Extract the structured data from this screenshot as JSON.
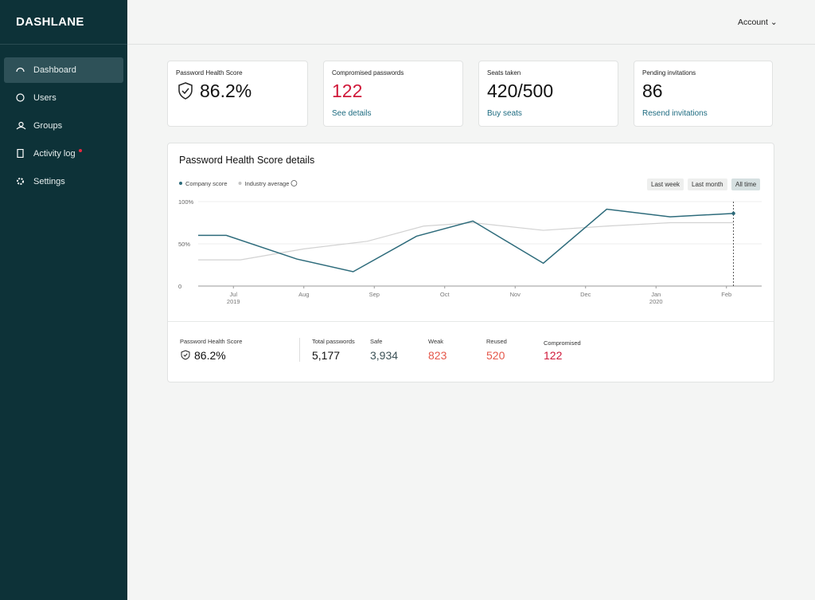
{
  "sidebar": {
    "logo": "DASHLANE",
    "nav": [
      "Dashboard",
      "Users",
      "Groups",
      "Activity log",
      "Settings"
    ]
  },
  "header": {
    "account": "Account"
  },
  "cards": [
    {
      "title": "Password Health Score",
      "value": "86.2%"
    },
    {
      "title": "Compromised passwords",
      "value": "122",
      "link": "See details"
    },
    {
      "title": "Seats taken",
      "value": "420/500",
      "link": "Buy seats"
    },
    {
      "title": "Pending invitations",
      "value": "86",
      "link": "Resend invitations"
    }
  ],
  "panel": {
    "title": "Password Health Score details",
    "ranges": [
      "Last week",
      "Last month",
      "All time"
    ]
  },
  "chart_data": {
    "type": "line",
    "series": [
      {
        "name": "Company score",
        "color": "#2d6b7b",
        "x": [
          -0.5,
          -0.1,
          0.9,
          1.7,
          2.6,
          3.4,
          4.4,
          5.3,
          6.2,
          7.1
        ],
        "values": [
          60,
          60,
          32,
          17,
          59,
          77,
          27,
          91,
          82,
          86
        ]
      },
      {
        "name": "Industry average",
        "color": "#d2d2d2",
        "x": [
          -0.5,
          0.1,
          1.0,
          1.9,
          2.7,
          3.4,
          4.4,
          5.3,
          6.2,
          7.1
        ],
        "values": [
          31,
          31,
          44,
          53,
          71,
          75,
          66,
          71,
          75,
          75
        ]
      }
    ],
    "xlim": [
      -0.5,
      7.5
    ],
    "ylim": [
      0,
      100
    ],
    "yticks": [
      0,
      {
        "value": 50,
        "label": "50%"
      },
      {
        "value": 100,
        "label": "100%"
      }
    ],
    "xticks": [
      {
        "value": 0,
        "label": "Jul"
      },
      {
        "value": 1,
        "label": "Aug"
      },
      {
        "value": 2,
        "label": "Sep"
      },
      {
        "value": 3,
        "label": "Oct"
      },
      {
        "value": 4,
        "label": "Nov"
      },
      {
        "value": 5,
        "label": "Dec"
      },
      {
        "value": 6,
        "label": "Jan"
      },
      {
        "value": 7,
        "label": "Feb"
      }
    ],
    "x_year_labels": [
      {
        "value": 0,
        "label": "2019"
      },
      {
        "value": 6,
        "label": "2020"
      }
    ],
    "grid": true
  },
  "summary": {
    "score_label": "Password Health Score",
    "score": "86.2%",
    "stats": [
      {
        "label": "Total passwords",
        "value": "5,177",
        "color": "#111111"
      },
      {
        "label": "Safe",
        "value": "3,934",
        "color": "#3d5257"
      },
      {
        "label": "Weak",
        "value": "823",
        "color": "#e5574a"
      },
      {
        "label": "Reused",
        "value": "520",
        "color": "#e5574a"
      },
      {
        "label": "Compromised",
        "value": "122",
        "color": "#d0193a"
      }
    ]
  }
}
